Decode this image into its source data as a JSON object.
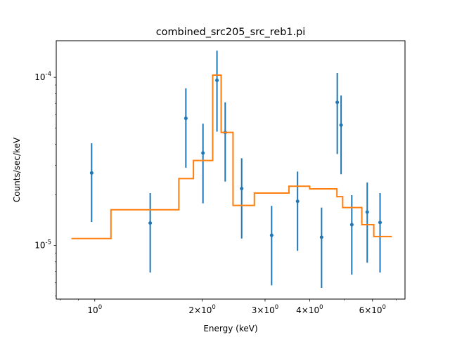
{
  "chart_data": {
    "type": "scatter",
    "title": "combined_src205_src_reb1.pi",
    "xlabel": "Energy (keV)",
    "ylabel": "Counts/sec/keV",
    "xscale": "log",
    "yscale": "log",
    "xlim": [
      0.78,
      7.4
    ],
    "ylim": [
      4.8e-06,
      0.000165
    ],
    "x_ticks": [
      {
        "value": 1,
        "label": "10^0"
      },
      {
        "value": 2,
        "label": "2×10^0"
      },
      {
        "value": 3,
        "label": "3×10^0"
      },
      {
        "value": 4,
        "label": "4×10^0"
      },
      {
        "value": 6,
        "label": "6×10^0"
      }
    ],
    "y_ticks": [
      {
        "value": 1e-05,
        "label": "10^-5"
      },
      {
        "value": 0.0001,
        "label": "10^-4"
      }
    ],
    "colors": {
      "data": "#1f77b4",
      "model": "#ff7f0e"
    },
    "series": [
      {
        "kind": "errorbar",
        "points": [
          {
            "x": 0.98,
            "y": 2.7e-05,
            "lo": 1.38e-05,
            "hi": 4.05e-05
          },
          {
            "x": 1.43,
            "y": 1.36e-05,
            "lo": 6.9e-06,
            "hi": 2.05e-05
          },
          {
            "x": 1.8,
            "y": 5.7e-05,
            "lo": 2.9e-05,
            "hi": 8.6e-05
          },
          {
            "x": 2.01,
            "y": 3.55e-05,
            "lo": 1.78e-05,
            "hi": 5.3e-05
          },
          {
            "x": 2.2,
            "y": 9.6e-05,
            "lo": 4.75e-05,
            "hi": 0.000144
          },
          {
            "x": 2.32,
            "y": 4.7e-05,
            "lo": 2.4e-05,
            "hi": 7.1e-05
          },
          {
            "x": 2.58,
            "y": 2.18e-05,
            "lo": 1.1e-05,
            "hi": 3.3e-05
          },
          {
            "x": 3.13,
            "y": 1.15e-05,
            "lo": 5.8e-06,
            "hi": 1.72e-05
          },
          {
            "x": 3.7,
            "y": 1.83e-05,
            "lo": 9.3e-06,
            "hi": 2.75e-05
          },
          {
            "x": 4.32,
            "y": 1.12e-05,
            "lo": 5.6e-06,
            "hi": 1.68e-05
          },
          {
            "x": 4.78,
            "y": 7.1e-05,
            "lo": 3.5e-05,
            "hi": 0.000106
          },
          {
            "x": 4.9,
            "y": 5.2e-05,
            "lo": 2.65e-05,
            "hi": 7.8e-05
          },
          {
            "x": 5.25,
            "y": 1.33e-05,
            "lo": 6.7e-06,
            "hi": 1.99e-05
          },
          {
            "x": 5.8,
            "y": 1.58e-05,
            "lo": 7.9e-06,
            "hi": 2.37e-05
          },
          {
            "x": 6.3,
            "y": 1.37e-05,
            "lo": 6.9e-06,
            "hi": 2.05e-05
          }
        ]
      },
      {
        "kind": "step",
        "bins": [
          {
            "x0": 0.86,
            "x1": 1.11,
            "y": 1.1e-05
          },
          {
            "x0": 1.11,
            "x1": 1.72,
            "y": 1.63e-05
          },
          {
            "x0": 1.72,
            "x1": 1.89,
            "y": 2.5e-05
          },
          {
            "x0": 1.89,
            "x1": 2.14,
            "y": 3.2e-05
          },
          {
            "x0": 2.14,
            "x1": 2.26,
            "y": 0.000103
          },
          {
            "x0": 2.26,
            "x1": 2.44,
            "y": 4.7e-05
          },
          {
            "x0": 2.44,
            "x1": 2.8,
            "y": 1.73e-05
          },
          {
            "x0": 2.8,
            "x1": 3.5,
            "y": 2.05e-05
          },
          {
            "x0": 3.5,
            "x1": 4.0,
            "y": 2.25e-05
          },
          {
            "x0": 4.0,
            "x1": 4.77,
            "y": 2.17e-05
          },
          {
            "x0": 4.77,
            "x1": 4.95,
            "y": 1.95e-05
          },
          {
            "x0": 4.95,
            "x1": 5.6,
            "y": 1.68e-05
          },
          {
            "x0": 5.6,
            "x1": 6.05,
            "y": 1.33e-05
          },
          {
            "x0": 6.05,
            "x1": 6.8,
            "y": 1.13e-05
          }
        ]
      }
    ]
  }
}
